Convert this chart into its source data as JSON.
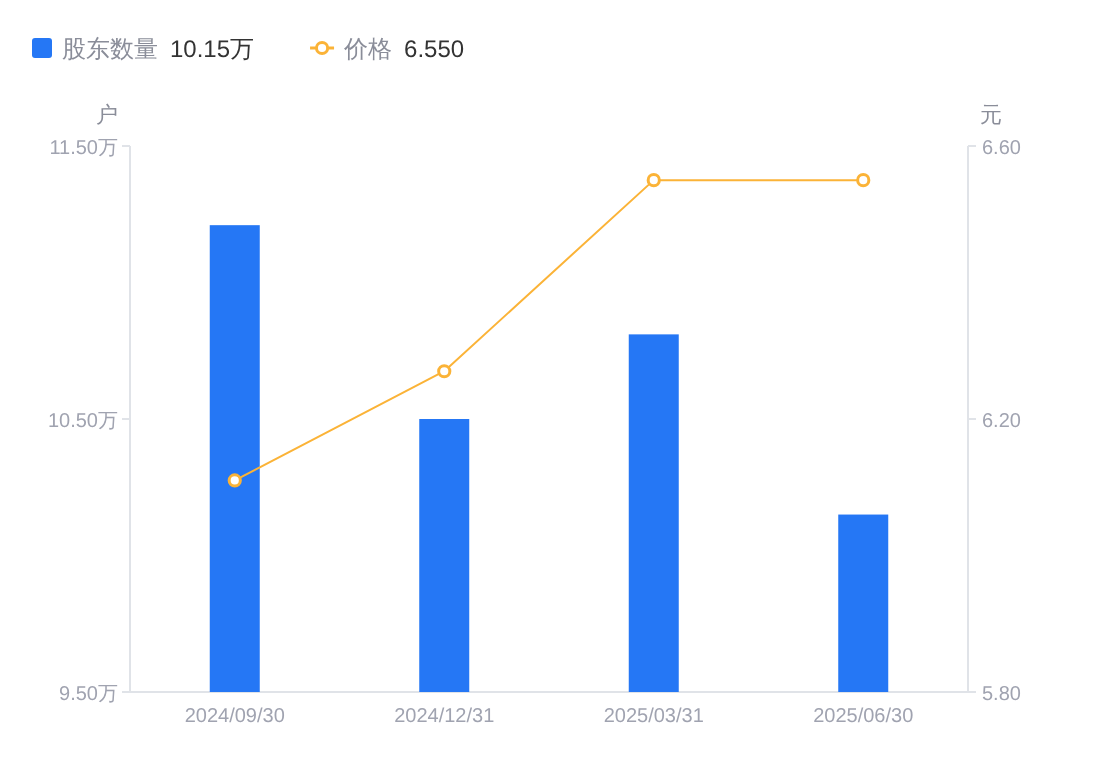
{
  "chart_data": {
    "type": "bar",
    "categories": [
      "2024/09/30",
      "2024/12/31",
      "2025/03/31",
      "2025/06/30"
    ],
    "series": [
      {
        "name": "股东数量",
        "color": "#2577f5",
        "values": [
          11.21,
          10.5,
          10.81,
          10.15
        ]
      },
      {
        "name": "价格",
        "type": "line",
        "axis": "y2",
        "color": "#fbb337",
        "values": [
          6.11,
          6.27,
          6.55,
          6.55
        ]
      }
    ],
    "annotations": [
      "10.15万",
      "6.550"
    ],
    "ylabel": "户",
    "y2label": "元",
    "ylim": [
      9.5,
      11.5
    ],
    "yticks": [
      {
        "value": 9.5,
        "label": "9.50万"
      },
      {
        "value": 10.5,
        "label": "10.50万"
      },
      {
        "value": 11.5,
        "label": "11.50万"
      }
    ],
    "y2lim": [
      5.8,
      6.6
    ],
    "y2ticks": [
      {
        "value": 5.8,
        "label": "5.80"
      },
      {
        "value": 6.2,
        "label": "6.20"
      },
      {
        "value": 6.6,
        "label": "6.60"
      }
    ],
    "legend": "top left",
    "marker": "circle"
  }
}
